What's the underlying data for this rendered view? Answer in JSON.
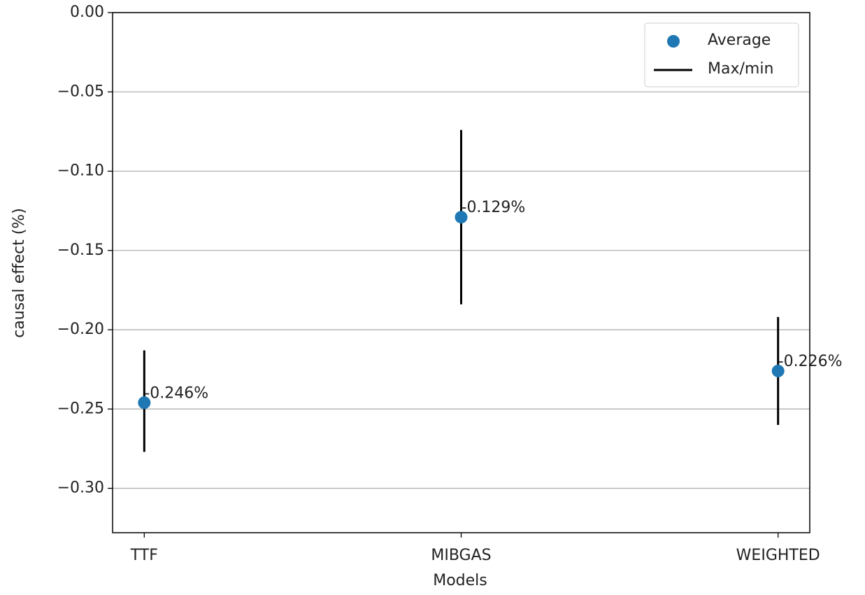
{
  "chart_data": {
    "type": "errorbar",
    "x_label": "Models",
    "y_label": "causal effect (%)",
    "categories": [
      "TTF",
      "MIBGAS",
      "WEIGHTED"
    ],
    "series": [
      {
        "name": "Average",
        "color": "#1f77b4",
        "values": [
          -0.246,
          -0.129,
          -0.226
        ],
        "value_labels": [
          "-0.246%",
          "-0.129%",
          "-0.226%"
        ]
      },
      {
        "name": "Max/min",
        "color": "#000000",
        "max": [
          -0.213,
          -0.074,
          -0.192
        ],
        "min": [
          -0.277,
          -0.184,
          -0.26
        ]
      }
    ],
    "ylim": [
      -0.328,
      0
    ],
    "yticks": [
      {
        "value": 0,
        "label": "0.00"
      },
      {
        "value": -0.05,
        "label": "−0.05"
      },
      {
        "value": -0.1,
        "label": "−0.10"
      },
      {
        "value": -0.15,
        "label": "−0.15"
      },
      {
        "value": -0.2,
        "label": "−0.20"
      },
      {
        "value": -0.25,
        "label": "−0.25"
      },
      {
        "value": -0.3,
        "label": "−0.30"
      }
    ],
    "grid": "y",
    "legend": "upper-right"
  }
}
